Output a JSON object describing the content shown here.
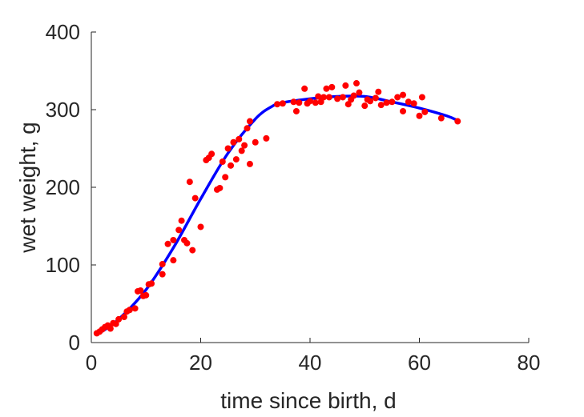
{
  "chart_data": {
    "type": "scatter",
    "title": "",
    "xlabel": "time since birth, d",
    "ylabel": "wet weight, g",
    "xlim": [
      0,
      80
    ],
    "ylim": [
      0,
      400
    ],
    "xticks": [
      0,
      20,
      40,
      60,
      80
    ],
    "yticks": [
      0,
      100,
      200,
      300,
      400
    ],
    "grid": false,
    "legend": "none",
    "series": [
      {
        "kind": "scatter",
        "color": "#ff0000",
        "points": [
          [
            1,
            12
          ],
          [
            1.5,
            14
          ],
          [
            2,
            17
          ],
          [
            2.5,
            20
          ],
          [
            3,
            22
          ],
          [
            3.5,
            18
          ],
          [
            4,
            25
          ],
          [
            4.5,
            24
          ],
          [
            5,
            30
          ],
          [
            6,
            33
          ],
          [
            6.5,
            40
          ],
          [
            7,
            42
          ],
          [
            8,
            44
          ],
          [
            8.5,
            66
          ],
          [
            9,
            67
          ],
          [
            9.5,
            60
          ],
          [
            10,
            61
          ],
          [
            10.5,
            75
          ],
          [
            11,
            76
          ],
          [
            13,
            88
          ],
          [
            13,
            101
          ],
          [
            14,
            127
          ],
          [
            15,
            106
          ],
          [
            15,
            132
          ],
          [
            16,
            145
          ],
          [
            16.5,
            157
          ],
          [
            17,
            132
          ],
          [
            17.5,
            128
          ],
          [
            18,
            207
          ],
          [
            18.5,
            119
          ],
          [
            19,
            186
          ],
          [
            20,
            149
          ],
          [
            21,
            235
          ],
          [
            21.5,
            238
          ],
          [
            22,
            243
          ],
          [
            23,
            197
          ],
          [
            23.5,
            199
          ],
          [
            24,
            233
          ],
          [
            24.5,
            213
          ],
          [
            25,
            250
          ],
          [
            25.5,
            228
          ],
          [
            26,
            258
          ],
          [
            26.5,
            236
          ],
          [
            27,
            262
          ],
          [
            27.5,
            247
          ],
          [
            28,
            254
          ],
          [
            28.5,
            276
          ],
          [
            29,
            285
          ],
          [
            29,
            230
          ],
          [
            30,
            258
          ],
          [
            32,
            263
          ],
          [
            34,
            307
          ],
          [
            35,
            308
          ],
          [
            37,
            310
          ],
          [
            37.5,
            298
          ],
          [
            38,
            309
          ],
          [
            39,
            327
          ],
          [
            39.5,
            308
          ],
          [
            40,
            311
          ],
          [
            41,
            309
          ],
          [
            41.5,
            317
          ],
          [
            42,
            310
          ],
          [
            42.5,
            316
          ],
          [
            43,
            327
          ],
          [
            43.5,
            316
          ],
          [
            44,
            329
          ],
          [
            45,
            314
          ],
          [
            46,
            316
          ],
          [
            46.5,
            331
          ],
          [
            47,
            307
          ],
          [
            47.5,
            313
          ],
          [
            48,
            318
          ],
          [
            48.5,
            334
          ],
          [
            49,
            322
          ],
          [
            50,
            305
          ],
          [
            50.5,
            313
          ],
          [
            51,
            311
          ],
          [
            52,
            315
          ],
          [
            52.5,
            323
          ],
          [
            53,
            306
          ],
          [
            54,
            309
          ],
          [
            55,
            310
          ],
          [
            56,
            316
          ],
          [
            57,
            319
          ],
          [
            57,
            298
          ],
          [
            58,
            310
          ],
          [
            59,
            308
          ],
          [
            60,
            292
          ],
          [
            60.5,
            316
          ],
          [
            61,
            297
          ],
          [
            64,
            289
          ],
          [
            67,
            285
          ]
        ]
      },
      {
        "kind": "line",
        "color": "#0000ff",
        "points": [
          [
            1,
            10
          ],
          [
            5,
            30
          ],
          [
            10,
            68
          ],
          [
            15,
            122
          ],
          [
            20,
            185
          ],
          [
            25,
            244
          ],
          [
            30,
            288
          ],
          [
            33,
            304
          ],
          [
            35,
            309
          ],
          [
            40,
            314
          ],
          [
            45,
            317
          ],
          [
            50,
            317
          ],
          [
            55,
            310
          ],
          [
            60,
            302
          ],
          [
            65,
            292
          ],
          [
            67,
            286
          ]
        ]
      }
    ]
  }
}
